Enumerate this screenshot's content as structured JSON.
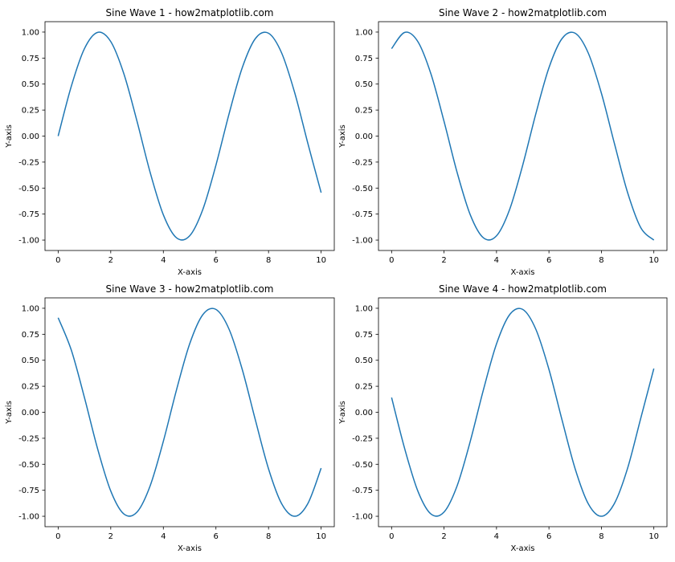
{
  "chart_data": [
    {
      "type": "line",
      "title": "Sine Wave 1 - how2matplotlib.com",
      "xlabel": "X-axis",
      "ylabel": "Y-axis",
      "xlim": [
        -0.5,
        10.5
      ],
      "ylim": [
        -1.1,
        1.1
      ],
      "xticks": [
        0,
        2,
        4,
        6,
        8,
        10
      ],
      "xtick_labels": [
        "0",
        "2",
        "4",
        "6",
        "8",
        "10"
      ],
      "yticks": [
        -1.0,
        -0.75,
        -0.5,
        -0.25,
        0.0,
        0.25,
        0.5,
        0.75,
        1.0
      ],
      "ytick_labels": [
        "-1.00",
        "-0.75",
        "-0.50",
        "-0.25",
        "0.00",
        "0.25",
        "0.50",
        "0.75",
        "1.00"
      ],
      "grid": false,
      "color": "#1f77b4",
      "series": [
        {
          "x": [
            0,
            0.5,
            1,
            1.5,
            2,
            2.5,
            3,
            3.5,
            4,
            4.5,
            5,
            5.5,
            6,
            6.5,
            7,
            7.5,
            8,
            8.5,
            9,
            9.5,
            10
          ],
          "y": [
            0.0,
            0.479,
            0.841,
            0.997,
            0.909,
            0.598,
            0.141,
            -0.351,
            -0.757,
            -0.978,
            -0.959,
            -0.706,
            -0.279,
            0.215,
            0.657,
            0.938,
            0.989,
            0.798,
            0.412,
            -0.075,
            -0.544
          ]
        }
      ]
    },
    {
      "type": "line",
      "title": "Sine Wave 2 - how2matplotlib.com",
      "xlabel": "X-axis",
      "ylabel": "Y-axis",
      "xlim": [
        -0.5,
        10.5
      ],
      "ylim": [
        -1.1,
        1.1
      ],
      "xticks": [
        0,
        2,
        4,
        6,
        8,
        10
      ],
      "xtick_labels": [
        "0",
        "2",
        "4",
        "6",
        "8",
        "10"
      ],
      "yticks": [
        -1.0,
        -0.75,
        -0.5,
        -0.25,
        0.0,
        0.25,
        0.5,
        0.75,
        1.0
      ],
      "ytick_labels": [
        "-1.00",
        "-0.75",
        "-0.50",
        "-0.25",
        "0.00",
        "0.25",
        "0.50",
        "0.75",
        "1.00"
      ],
      "grid": false,
      "color": "#1f77b4",
      "series": [
        {
          "x": [
            0,
            0.5,
            1,
            1.5,
            2,
            2.5,
            3,
            3.5,
            4,
            4.5,
            5,
            5.5,
            6,
            6.5,
            7,
            7.5,
            8,
            8.5,
            9,
            9.5,
            10
          ],
          "y": [
            0.841,
            0.997,
            0.909,
            0.598,
            0.141,
            -0.351,
            -0.757,
            -0.978,
            -0.959,
            -0.706,
            -0.279,
            0.215,
            0.657,
            0.938,
            0.989,
            0.798,
            0.412,
            -0.075,
            -0.544,
            -0.88,
            -1.0
          ]
        }
      ]
    },
    {
      "type": "line",
      "title": "Sine Wave 3 - how2matplotlib.com",
      "xlabel": "X-axis",
      "ylabel": "Y-axis",
      "xlim": [
        -0.5,
        10.5
      ],
      "ylim": [
        -1.1,
        1.1
      ],
      "xticks": [
        0,
        2,
        4,
        6,
        8,
        10
      ],
      "xtick_labels": [
        "0",
        "2",
        "4",
        "6",
        "8",
        "10"
      ],
      "yticks": [
        -1.0,
        -0.75,
        -0.5,
        -0.25,
        0.0,
        0.25,
        0.5,
        0.75,
        1.0
      ],
      "ytick_labels": [
        "-1.00",
        "-0.75",
        "-0.50",
        "-0.25",
        "0.00",
        "0.25",
        "0.50",
        "0.75",
        "1.00"
      ],
      "grid": false,
      "color": "#1f77b4",
      "series": [
        {
          "x": [
            0,
            0.5,
            1,
            1.5,
            2,
            2.5,
            3,
            3.5,
            4,
            4.5,
            5,
            5.5,
            6,
            6.5,
            7,
            7.5,
            8,
            8.5,
            9,
            9.5,
            10
          ],
          "y": [
            0.909,
            0.598,
            0.141,
            -0.351,
            -0.757,
            -0.978,
            -0.959,
            -0.706,
            -0.279,
            0.215,
            0.657,
            0.938,
            0.989,
            0.798,
            0.412,
            -0.075,
            -0.544,
            -0.88,
            -1.0,
            -0.875,
            -0.537
          ]
        }
      ]
    },
    {
      "type": "line",
      "title": "Sine Wave 4 - how2matplotlib.com",
      "xlabel": "X-axis",
      "ylabel": "Y-axis",
      "xlim": [
        -0.5,
        10.5
      ],
      "ylim": [
        -1.1,
        1.1
      ],
      "xticks": [
        0,
        2,
        4,
        6,
        8,
        10
      ],
      "xtick_labels": [
        "0",
        "2",
        "4",
        "6",
        "8",
        "10"
      ],
      "yticks": [
        -1.0,
        -0.75,
        -0.5,
        -0.25,
        0.0,
        0.25,
        0.5,
        0.75,
        1.0
      ],
      "ytick_labels": [
        "-1.00",
        "-0.75",
        "-0.50",
        "-0.25",
        "0.00",
        "0.25",
        "0.50",
        "0.75",
        "1.00"
      ],
      "grid": false,
      "color": "#1f77b4",
      "series": [
        {
          "x": [
            0,
            0.5,
            1,
            1.5,
            2,
            2.5,
            3,
            3.5,
            4,
            4.5,
            5,
            5.5,
            6,
            6.5,
            7,
            7.5,
            8,
            8.5,
            9,
            9.5,
            10
          ],
          "y": [
            0.141,
            -0.351,
            -0.757,
            -0.978,
            -0.959,
            -0.706,
            -0.279,
            0.215,
            0.657,
            0.938,
            0.989,
            0.798,
            0.412,
            -0.075,
            -0.544,
            -0.88,
            -1.0,
            -0.875,
            -0.537,
            -0.058,
            0.42
          ]
        }
      ]
    }
  ]
}
